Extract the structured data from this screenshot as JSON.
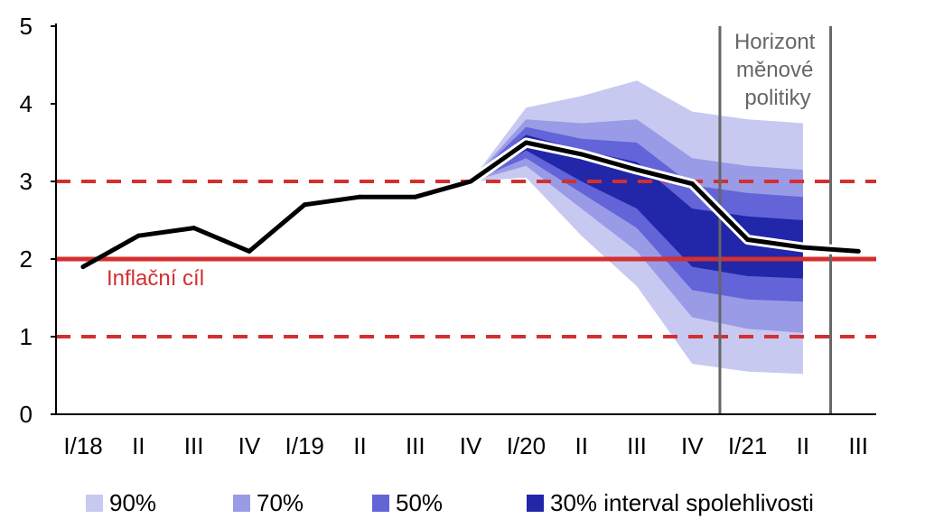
{
  "chart_data": {
    "type": "area",
    "x": [
      "I/18",
      "II",
      "III",
      "IV",
      "I/19",
      "II",
      "III",
      "IV",
      "I/20",
      "II",
      "III",
      "IV",
      "I/21",
      "II",
      "III"
    ],
    "ylim": [
      0,
      5
    ],
    "yticks": [
      0,
      1,
      2,
      3,
      4,
      5
    ],
    "ytick_labels": [
      "0",
      "1",
      "2",
      "3",
      "4",
      "5"
    ],
    "series": [
      {
        "values": [
          1.9,
          2.3,
          2.4,
          2.1,
          2.7,
          2.8,
          2.8,
          3.0,
          3.5,
          3.35,
          3.15,
          2.97,
          2.25,
          2.15,
          2.1
        ]
      }
    ],
    "fan": {
      "start_index": 7,
      "bands": [
        {
          "label": "90%",
          "color": "#c8c9f0",
          "upper": [
            3.0,
            3.95,
            4.1,
            4.3,
            3.9,
            3.8,
            3.75
          ],
          "lower": [
            3.0,
            3.05,
            2.3,
            1.65,
            0.65,
            0.55,
            0.52
          ]
        },
        {
          "label": "70%",
          "color": "#9a9be6",
          "upper": [
            3.0,
            3.8,
            3.75,
            3.8,
            3.3,
            3.2,
            3.15
          ],
          "lower": [
            3.0,
            3.2,
            2.65,
            2.1,
            1.25,
            1.1,
            1.05
          ]
        },
        {
          "label": "50%",
          "color": "#6264d8",
          "upper": [
            3.0,
            3.7,
            3.55,
            3.5,
            2.95,
            2.85,
            2.8
          ],
          "lower": [
            3.0,
            3.3,
            2.85,
            2.4,
            1.6,
            1.48,
            1.45
          ]
        },
        {
          "label": "30% interval spolehlivosti",
          "color": "#2226a8",
          "upper": [
            3.0,
            3.6,
            3.4,
            3.25,
            2.65,
            2.55,
            2.5
          ],
          "lower": [
            3.0,
            3.4,
            3.0,
            2.65,
            1.9,
            1.78,
            1.75
          ]
        }
      ]
    },
    "target": {
      "label": "Inflační cíl",
      "value": 2,
      "band": [
        1,
        3
      ],
      "color": "#d32f2f"
    },
    "horizon": {
      "label_lines": [
        "Horizont",
        "měnové",
        "politiky"
      ],
      "from_x": 11.5,
      "to_x": 13.5,
      "color": "#666666"
    },
    "legend": {
      "position": "bottom"
    },
    "grid": false
  }
}
